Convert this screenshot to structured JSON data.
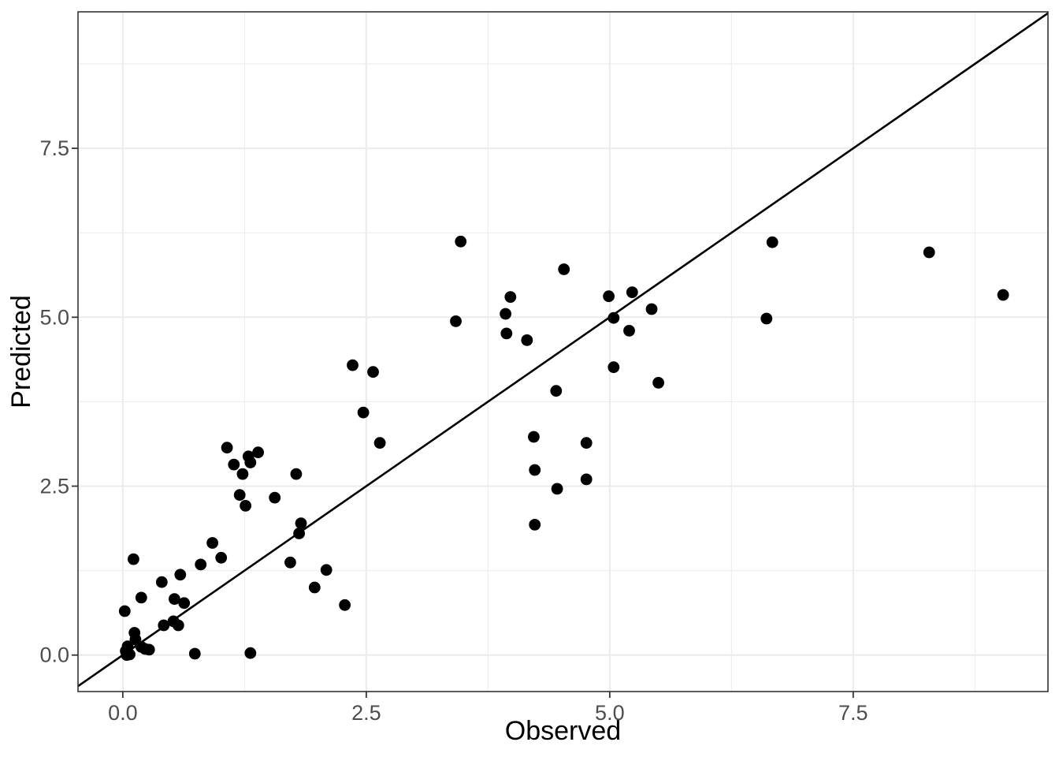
{
  "chart_data": {
    "type": "scatter",
    "title": "",
    "xlabel": "Observed",
    "ylabel": "Predicted",
    "xlim": [
      -0.46,
      9.5
    ],
    "ylim": [
      -0.54,
      9.52
    ],
    "x_major_ticks": [
      0.0,
      2.5,
      5.0,
      7.5
    ],
    "x_tick_labels": [
      "0.0",
      "2.5",
      "5.0",
      "7.5"
    ],
    "y_major_ticks": [
      0.0,
      2.5,
      5.0,
      7.5
    ],
    "y_tick_labels": [
      "0.0",
      "2.5",
      "5.0",
      "7.5"
    ],
    "x_minor_ticks": [
      1.25,
      3.75,
      6.25,
      8.75
    ],
    "y_minor_ticks": [
      1.25,
      3.75,
      6.25,
      8.75
    ],
    "grid": true,
    "legend": false,
    "identity_line": {
      "slope": 1,
      "intercept": 0
    },
    "points": [
      [
        0.11,
        1.42
      ],
      [
        0.19,
        0.85
      ],
      [
        0.02,
        0.65
      ],
      [
        0.12,
        0.33
      ],
      [
        0.13,
        0.23
      ],
      [
        0.05,
        0.13
      ],
      [
        0.19,
        0.12
      ],
      [
        0.23,
        0.09
      ],
      [
        0.27,
        0.08
      ],
      [
        0.03,
        0.06
      ],
      [
        0.07,
        0.01
      ],
      [
        0.04,
        0.0
      ],
      [
        0.4,
        1.08
      ],
      [
        0.42,
        0.44
      ],
      [
        0.52,
        0.5
      ],
      [
        0.57,
        0.44
      ],
      [
        0.59,
        1.19
      ],
      [
        0.53,
        0.83
      ],
      [
        0.63,
        0.77
      ],
      [
        0.8,
        1.34
      ],
      [
        0.92,
        1.66
      ],
      [
        0.74,
        0.02
      ],
      [
        1.01,
        1.44
      ],
      [
        1.31,
        0.03
      ],
      [
        1.07,
        3.07
      ],
      [
        1.39,
        3.0
      ],
      [
        1.29,
        2.94
      ],
      [
        1.31,
        2.85
      ],
      [
        1.14,
        2.82
      ],
      [
        1.23,
        2.68
      ],
      [
        1.78,
        2.68
      ],
      [
        1.2,
        2.37
      ],
      [
        1.56,
        2.33
      ],
      [
        1.26,
        2.21
      ],
      [
        1.72,
        1.37
      ],
      [
        1.83,
        1.95
      ],
      [
        1.81,
        1.8
      ],
      [
        1.97,
        1.0
      ],
      [
        2.09,
        1.26
      ],
      [
        2.28,
        0.74
      ],
      [
        2.36,
        4.29
      ],
      [
        2.57,
        4.19
      ],
      [
        2.47,
        3.59
      ],
      [
        2.64,
        3.14
      ],
      [
        3.47,
        6.12
      ],
      [
        3.42,
        4.94
      ],
      [
        3.93,
        5.05
      ],
      [
        3.98,
        5.3
      ],
      [
        3.94,
        4.76
      ],
      [
        4.15,
        4.66
      ],
      [
        4.53,
        5.71
      ],
      [
        4.45,
        3.91
      ],
      [
        4.22,
        3.23
      ],
      [
        4.23,
        2.74
      ],
      [
        4.23,
        1.93
      ],
      [
        4.46,
        2.46
      ],
      [
        4.76,
        3.14
      ],
      [
        4.76,
        2.6
      ],
      [
        4.99,
        5.31
      ],
      [
        5.23,
        5.37
      ],
      [
        5.43,
        5.12
      ],
      [
        5.04,
        4.99
      ],
      [
        5.2,
        4.8
      ],
      [
        5.04,
        4.26
      ],
      [
        5.5,
        4.03
      ],
      [
        6.67,
        6.11
      ],
      [
        6.61,
        4.98
      ],
      [
        8.28,
        5.96
      ],
      [
        9.04,
        5.33
      ]
    ],
    "style": {
      "point_color": "#000000",
      "point_radius": 7.4,
      "line_color": "#000000",
      "line_width": 2.6,
      "grid_major_color": "#ebebeb",
      "grid_minor_color": "#ebebeb",
      "grid_major_width": 2.0,
      "grid_minor_width": 1.0,
      "panel_border_color": "#343434",
      "panel_border_width": 1.6,
      "tick_color": "#343434",
      "tick_length": 8,
      "panel_bg": "#ffffff",
      "plot_bg": "#ffffff"
    }
  }
}
